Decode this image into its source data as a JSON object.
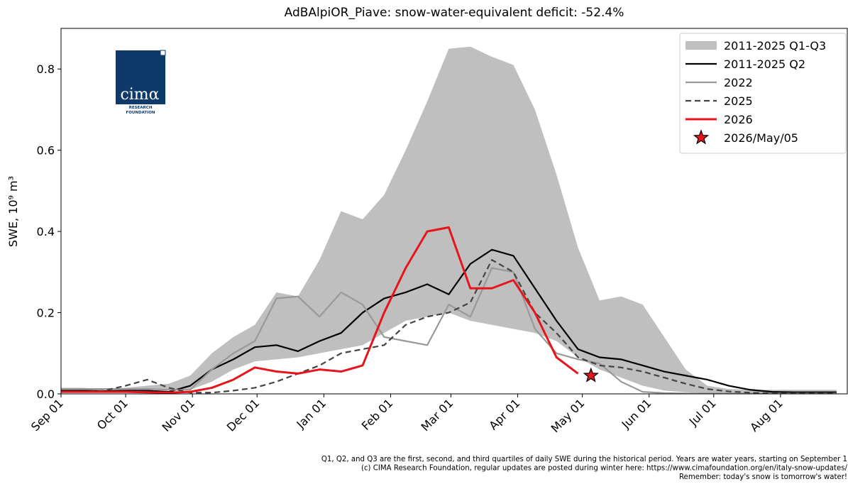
{
  "chart_data": {
    "type": "line",
    "title": "AdBAlpiOR_Piave: snow-water-equivalent deficit: -52.4%",
    "y_label": "SWE, 10⁹ m³",
    "x": [
      0,
      10,
      20,
      30,
      40,
      50,
      60,
      70,
      80,
      90,
      100,
      110,
      120,
      130,
      140,
      150,
      160,
      170,
      180,
      190,
      200,
      210,
      220,
      230,
      240,
      250,
      260,
      270,
      280,
      290,
      300,
      310,
      320,
      330,
      340,
      350,
      360
    ],
    "xlim": [
      0,
      365
    ],
    "xticks": [
      {
        "value": 0,
        "label": "Sep 01"
      },
      {
        "value": 30,
        "label": "Oct 01"
      },
      {
        "value": 61,
        "label": "Nov 01"
      },
      {
        "value": 91,
        "label": "Dec 01"
      },
      {
        "value": 122,
        "label": "Jan 01"
      },
      {
        "value": 153,
        "label": "Feb 01"
      },
      {
        "value": 181,
        "label": "Mar 01"
      },
      {
        "value": 212,
        "label": "Apr 01"
      },
      {
        "value": 242,
        "label": "May 01"
      },
      {
        "value": 273,
        "label": "Jun 01"
      },
      {
        "value": 303,
        "label": "Jul 01"
      },
      {
        "value": 334,
        "label": "Aug 01"
      }
    ],
    "ylim": [
      0,
      0.9
    ],
    "yticks": [
      {
        "value": 0,
        "label": "0.0"
      },
      {
        "value": 0.2,
        "label": "0.2"
      },
      {
        "value": 0.4,
        "label": "0.4"
      },
      {
        "value": 0.6,
        "label": "0.6"
      },
      {
        "value": 0.8,
        "label": "0.8"
      }
    ],
    "grid": false,
    "legend": "upper right",
    "series": [
      {
        "name": "2011-2025 Q1-Q3",
        "kind": "band",
        "color": "#bfbfbf",
        "values": [
          0.015,
          0.015,
          0.012,
          0.015,
          0.02,
          0.025,
          0.045,
          0.1,
          0.14,
          0.17,
          0.25,
          0.24,
          0.33,
          0.45,
          0.43,
          0.49,
          0.6,
          0.72,
          0.85,
          0.855,
          0.83,
          0.81,
          0.7,
          0.54,
          0.36,
          0.23,
          0.24,
          0.22,
          0.14,
          0.06,
          0.02,
          0.012,
          0.01,
          0.01,
          0.01,
          0.01,
          0.01
        ],
        "lower": [
          0.01,
          0.01,
          0.01,
          0.01,
          0.01,
          0.01,
          0.01,
          0.03,
          0.06,
          0.08,
          0.085,
          0.09,
          0.1,
          0.11,
          0.12,
          0.15,
          0.18,
          0.19,
          0.2,
          0.18,
          0.17,
          0.16,
          0.15,
          0.13,
          0.09,
          0.06,
          0.04,
          0.02,
          0.008,
          0.004,
          0.002,
          0.001,
          0.001,
          0.001,
          0.001,
          0.001,
          0.001
        ]
      },
      {
        "name": "2011-2025 Q2",
        "kind": "line",
        "color": "#000000",
        "dash": "",
        "values": [
          0.008,
          0.008,
          0.007,
          0.008,
          0.008,
          0.005,
          0.02,
          0.06,
          0.085,
          0.115,
          0.12,
          0.105,
          0.13,
          0.15,
          0.2,
          0.235,
          0.25,
          0.27,
          0.245,
          0.32,
          0.355,
          0.34,
          0.26,
          0.18,
          0.11,
          0.09,
          0.085,
          0.07,
          0.055,
          0.045,
          0.035,
          0.02,
          0.01,
          0.005,
          0.004,
          0.004,
          0.004
        ]
      },
      {
        "name": "2022",
        "kind": "line",
        "color": "#999999",
        "dash": "",
        "values": [
          0.012,
          0.012,
          0.012,
          0.012,
          0.012,
          0.01,
          0.01,
          0.06,
          0.1,
          0.13,
          0.235,
          0.24,
          0.19,
          0.25,
          0.22,
          0.14,
          0.13,
          0.12,
          0.22,
          0.19,
          0.31,
          0.3,
          0.16,
          0.1,
          0.085,
          0.075,
          0.03,
          0.005,
          0.002,
          0.001,
          0.001,
          0.001,
          0.001,
          0.001,
          0.001,
          0.001,
          0.001
        ]
      },
      {
        "name": "2025",
        "kind": "line",
        "color": "#444444",
        "dash": "8 5",
        "values": [
          0.005,
          0.005,
          0.008,
          0.02,
          0.035,
          0.015,
          0.003,
          0.003,
          0.008,
          0.015,
          0.03,
          0.05,
          0.07,
          0.1,
          0.11,
          0.12,
          0.17,
          0.19,
          0.2,
          0.225,
          0.33,
          0.3,
          0.2,
          0.15,
          0.09,
          0.07,
          0.065,
          0.055,
          0.04,
          0.025,
          0.012,
          0.006,
          0.003,
          0.001,
          0.001,
          0.001,
          0.001
        ]
      },
      {
        "name": "2026",
        "kind": "line",
        "color": "#e8141c",
        "dash": "",
        "values": [
          0.005,
          0.005,
          0.005,
          0.005,
          0.004,
          0.003,
          0.005,
          0.015,
          0.035,
          0.065,
          0.055,
          0.05,
          0.06,
          0.055,
          0.07,
          0.2,
          0.31,
          0.4,
          0.41,
          0.26,
          0.26,
          0.28,
          0.2,
          0.09,
          0.05,
          null,
          null,
          null,
          null,
          null,
          null,
          null,
          null,
          null,
          null,
          null,
          null
        ]
      }
    ],
    "marker": {
      "name": "2026/May/05",
      "x": 246,
      "value": 0.045,
      "color": "#e8141c"
    },
    "logo": [
      "cimα",
      "RESEARCH",
      "FOUNDATION"
    ],
    "footnotes": [
      "Q1, Q2, and Q3 are the first, second, and third quartiles of daily SWE during the historical period. Years are water years, starting on September 1",
      "(c) CIMA Research Foundation, regular updates are posted during winter here: https://www.cimafoundation.org/en/italy-snow-updates/",
      "Remember: today's snow is tomorrow's water!"
    ]
  }
}
